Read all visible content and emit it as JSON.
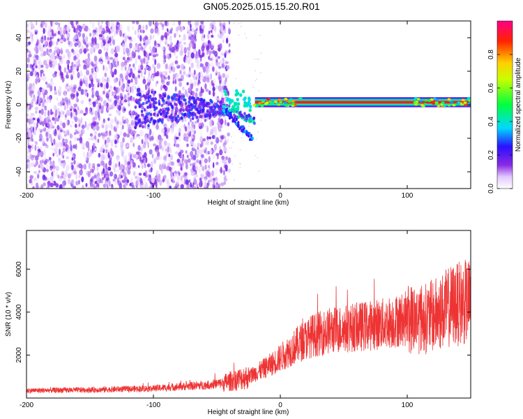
{
  "title": "GN05.2025.015.15.20.R01",
  "chart_data": [
    {
      "type": "heatmap",
      "xlabel": "Height of straight line (km)",
      "ylabel": "Frequency (Hz)",
      "xlim": [
        -200,
        150
      ],
      "ylim": [
        -50,
        50
      ],
      "xticks": [
        -200,
        -100,
        0,
        100
      ],
      "yticks": [
        -40,
        -20,
        0,
        20,
        40
      ],
      "colorbar": {
        "label": "Normalized spectral amplitude",
        "range": [
          0,
          1
        ],
        "ticks": [
          0.0,
          0.2,
          0.4,
          0.6,
          0.8
        ]
      },
      "features": {
        "noise_region_x": [
          -200,
          -45
        ],
        "transition_x": [
          -45,
          -20
        ],
        "carrier_line_x": [
          -20,
          150
        ],
        "carrier_frequency_hz": 1.5,
        "carrier_amplitude": 0.9
      }
    },
    {
      "type": "line",
      "xlabel": "Height of straight line (km)",
      "ylabel": "SNR (10 * v/v)",
      "xlim": [
        -200,
        150
      ],
      "ylim": [
        0,
        7800
      ],
      "xticks": [
        -200,
        -100,
        0,
        100
      ],
      "yticks": [
        2000,
        4000,
        6000
      ],
      "series_color": "#ee3333",
      "trend": {
        "x": [
          -200,
          -150,
          -100,
          -60,
          -45,
          -35,
          -25,
          -15,
          -5,
          5,
          15,
          25,
          40,
          60,
          80,
          100,
          115,
          125,
          135,
          150
        ],
        "y": [
          350,
          380,
          450,
          600,
          700,
          850,
          1000,
          1300,
          1650,
          2100,
          2550,
          2900,
          3150,
          3300,
          3450,
          3700,
          3700,
          3950,
          4300,
          4500
        ]
      }
    }
  ]
}
